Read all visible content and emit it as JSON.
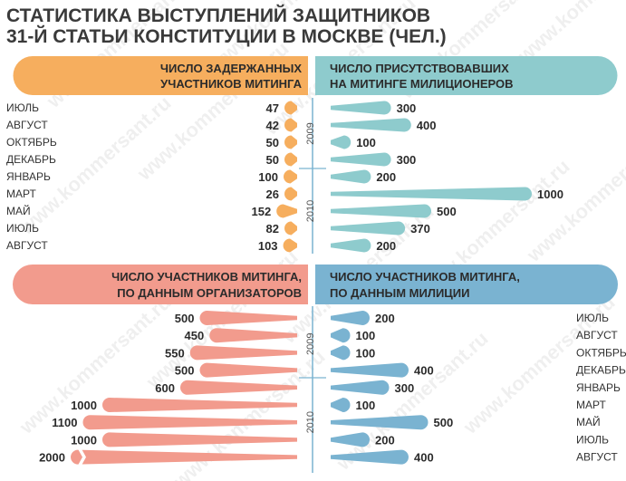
{
  "title_lines": [
    "СТАТИСТИКА ВЫСТУПЛЕНИЙ ЗАЩИТНИКОВ",
    "31-Й СТАТЬИ КОНСТИТУЦИИ В МОСКВЕ (ЧЕЛ.)"
  ],
  "watermark": "www.kommersant.ru",
  "colors": {
    "detained": "#f6ae5e",
    "police_present": "#8ecbcd",
    "participants_organizers": "#f29b8d",
    "participants_police": "#7ab3d1",
    "divider": "#7ab3d1",
    "text": "#2b2b2b"
  },
  "chart_data": [
    {
      "type": "bar",
      "title_lines": [
        "ЧИСЛО ЗАДЕРЖАННЫХ",
        "УЧАСТНИКОВ МИТИНГА"
      ],
      "categories": [
        "ИЮЛЬ",
        "АВГУСТ",
        "ОКТЯБРЬ",
        "ДЕКАБРЬ",
        "ЯНВАРЬ",
        "МАРТ",
        "МАЙ",
        "ИЮЛЬ",
        "АВГУСТ"
      ],
      "years": [
        {
          "label": "2009",
          "rows": [
            0,
            3
          ]
        },
        {
          "label": "2010",
          "rows": [
            4,
            8
          ]
        }
      ],
      "values": [
        47,
        42,
        50,
        50,
        100,
        26,
        152,
        82,
        103
      ],
      "value_labels": [
        "47",
        "42",
        "50",
        "50",
        "100",
        "26",
        "152",
        "82",
        "103"
      ],
      "orientation": "horizontal-left"
    },
    {
      "type": "bar",
      "title_lines": [
        "ЧИСЛО ПРИСУТСТВОВАВШИХ",
        "НА МИТИНГЕ МИЛИЦИОНЕРОВ"
      ],
      "categories": [
        "ИЮЛЬ",
        "АВГУСТ",
        "ОКТЯБРЬ",
        "ДЕКАБРЬ",
        "ЯНВАРЬ",
        "МАРТ",
        "МАЙ",
        "ИЮЛЬ",
        "АВГУСТ"
      ],
      "years": [
        {
          "label": "2009",
          "rows": [
            0,
            3
          ]
        },
        {
          "label": "2010",
          "rows": [
            4,
            8
          ]
        }
      ],
      "values": [
        300,
        400,
        100,
        300,
        200,
        1000,
        500,
        370,
        200
      ],
      "value_labels": [
        "300",
        "400",
        "100",
        "300",
        "200",
        "1000",
        "500",
        "370",
        "200"
      ],
      "orientation": "horizontal-right"
    },
    {
      "type": "bar",
      "title_lines": [
        "ЧИСЛО УЧАСТНИКОВ МИТИНГА,",
        "ПО ДАННЫМ ОРГАНИЗАТОРОВ"
      ],
      "categories": [
        "ИЮЛЬ",
        "АВГУСТ",
        "ОКТЯБРЬ",
        "ДЕКАБРЬ",
        "ЯНВАРЬ",
        "МАРТ",
        "МАЙ",
        "ИЮЛЬ",
        "АВГУСТ"
      ],
      "years": [
        {
          "label": "2009",
          "rows": [
            0,
            3
          ]
        },
        {
          "label": "2010",
          "rows": [
            4,
            8
          ]
        }
      ],
      "values": [
        500,
        450,
        550,
        500,
        600,
        1000,
        1100,
        1000,
        2000
      ],
      "value_labels": [
        "500",
        "450",
        "550",
        "500",
        "600",
        "1000",
        "1100",
        "1000",
        "2000"
      ],
      "orientation": "horizontal-left"
    },
    {
      "type": "bar",
      "title_lines": [
        "ЧИСЛО УЧАСТНИКОВ МИТИНГА,",
        "ПО ДАННЫМ МИЛИЦИИ"
      ],
      "categories": [
        "ИЮЛЬ",
        "АВГУСТ",
        "ОКТЯБРЬ",
        "ДЕКАБРЬ",
        "ЯНВАРЬ",
        "МАРТ",
        "МАЙ",
        "ИЮЛЬ",
        "АВГУСТ"
      ],
      "years": [
        {
          "label": "2009",
          "rows": [
            0,
            3
          ]
        },
        {
          "label": "2010",
          "rows": [
            4,
            8
          ]
        }
      ],
      "values": [
        200,
        100,
        100,
        400,
        300,
        100,
        500,
        200,
        400
      ],
      "value_labels": [
        "200",
        "100",
        "100",
        "400",
        "300",
        "100",
        "500",
        "200",
        "400"
      ],
      "orientation": "horizontal-right"
    }
  ]
}
